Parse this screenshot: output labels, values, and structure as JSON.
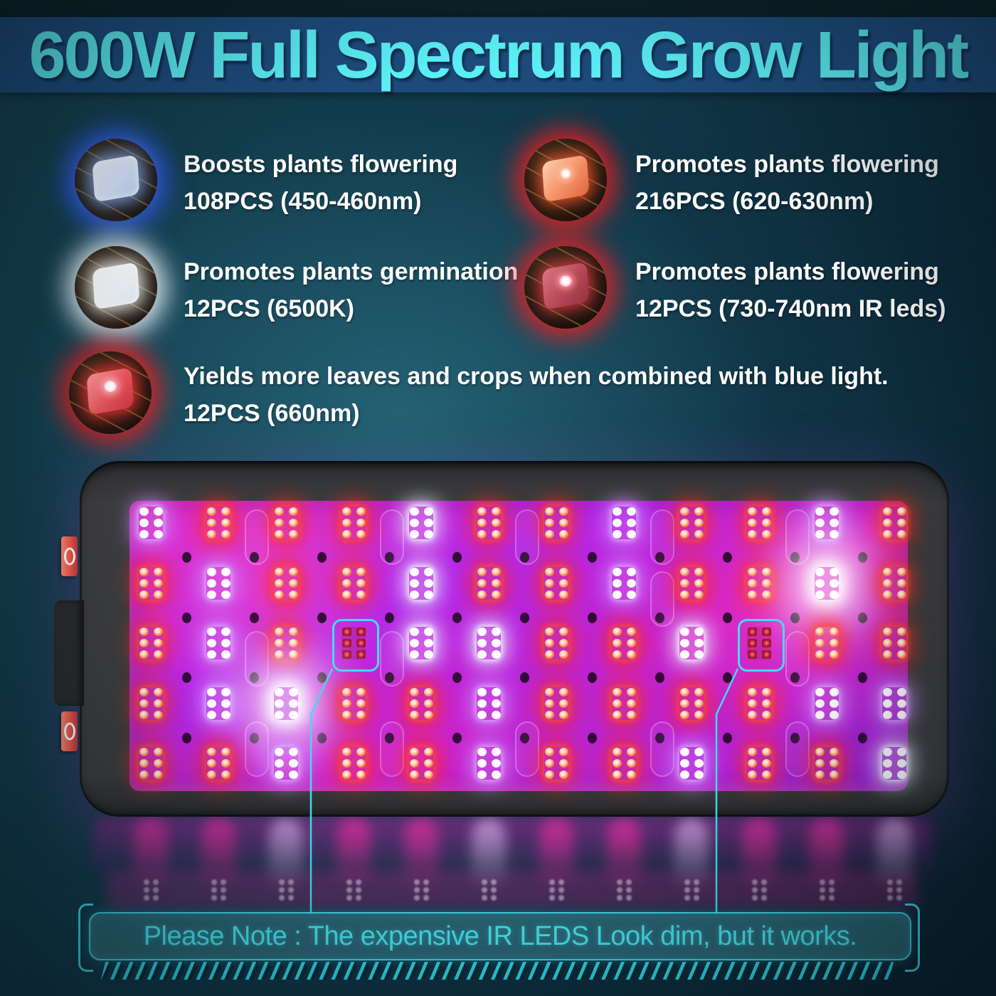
{
  "title": "600W Full Spectrum Grow Light",
  "features": [
    {
      "icon": "blue-led-chip",
      "line1": "Boosts plants flowering",
      "line2": "108PCS (450-460nm)"
    },
    {
      "icon": "orange-led-chip",
      "line1": "Promotes plants flowering",
      "line2": "216PCS (620-630nm)"
    },
    {
      "icon": "white-led-chip",
      "line1": "Promotes plants germination",
      "line2": "12PCS (6500K)"
    },
    {
      "icon": "ir-led-chip",
      "line1": "Promotes plants flowering",
      "line2": "12PCS (730-740nm IR leds)"
    },
    {
      "icon": "red-led-chip",
      "line1": "Yields more leaves and crops when combined with blue light.",
      "line2": "12PCS (660nm)"
    }
  ],
  "panel": {
    "rows": 5,
    "cols": 12,
    "grid": [
      [
        "violet",
        "red",
        "red",
        "red",
        "white",
        "red",
        "red",
        "violet",
        "red",
        "red",
        "violet",
        "red"
      ],
      [
        "red",
        "violet",
        "red",
        "red",
        "white",
        "red",
        "red",
        "violet",
        "red",
        "red",
        "bright",
        "red"
      ],
      [
        "red",
        "violet",
        "red",
        "ir",
        "white",
        "white",
        "red",
        "red",
        "white",
        "ir",
        "red",
        "red"
      ],
      [
        "red",
        "violet",
        "bright",
        "red",
        "red",
        "violet",
        "red",
        "red",
        "red",
        "red",
        "violet",
        "violet"
      ],
      [
        "red",
        "red",
        "violet",
        "red",
        "red",
        "violet",
        "red",
        "red",
        "violet",
        "red",
        "red",
        "white"
      ]
    ],
    "ir_highlight_count": 2,
    "switch_count": 2
  },
  "note": {
    "text": "Please Note : The expensive IR LEDS Look dim, but it works."
  },
  "colors": {
    "accent_cyan": "#3fd8e8",
    "title_text": "#5beef4",
    "banner_bg": "#1d4a7a",
    "background_teal": "#11394a",
    "feature_text": "#ffffff",
    "panel_frame": "#3d3d3f",
    "board_magenta": "#c828d2",
    "led_red": "#f23a1c",
    "led_white": "#ffffff",
    "led_violet": "#d8baff",
    "led_ir": "#b01e3e",
    "switch_orange": "#f05548",
    "note_bg": "#2c6876"
  }
}
